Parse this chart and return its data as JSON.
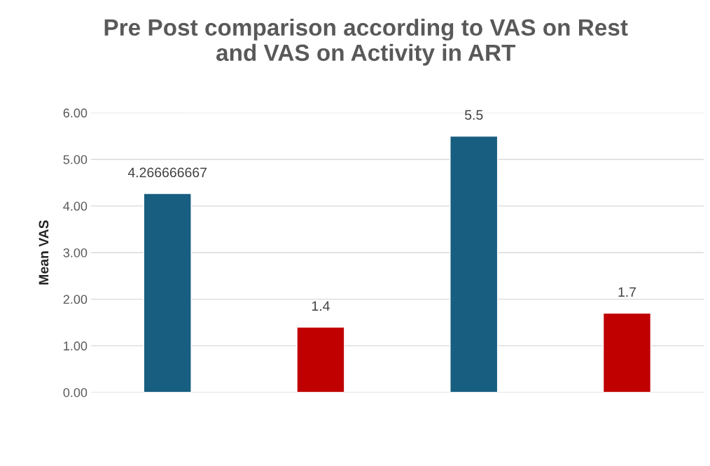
{
  "chart_data": {
    "type": "bar",
    "title": "Pre Post comparison according to VAS on Rest\nand VAS on Activity in ART",
    "ylabel": "Mean VAS",
    "categories": [
      null,
      null,
      null,
      null
    ],
    "values": [
      4.266666667,
      1.4,
      5.5,
      1.7
    ],
    "colors": [
      "#175e80",
      "#c00000",
      "#175e80",
      "#c00000"
    ],
    "ylim": [
      0,
      6
    ],
    "yticks": [
      {
        "value": 0,
        "label": "0.00"
      },
      {
        "value": 1,
        "label": "1.00"
      },
      {
        "value": 2,
        "label": "2.00"
      },
      {
        "value": 3,
        "label": "3.00"
      },
      {
        "value": 4,
        "label": "4.00"
      },
      {
        "value": 5,
        "label": "5.00"
      },
      {
        "value": 6,
        "label": "6.00"
      }
    ],
    "grid": "y",
    "data_labels": true
  }
}
